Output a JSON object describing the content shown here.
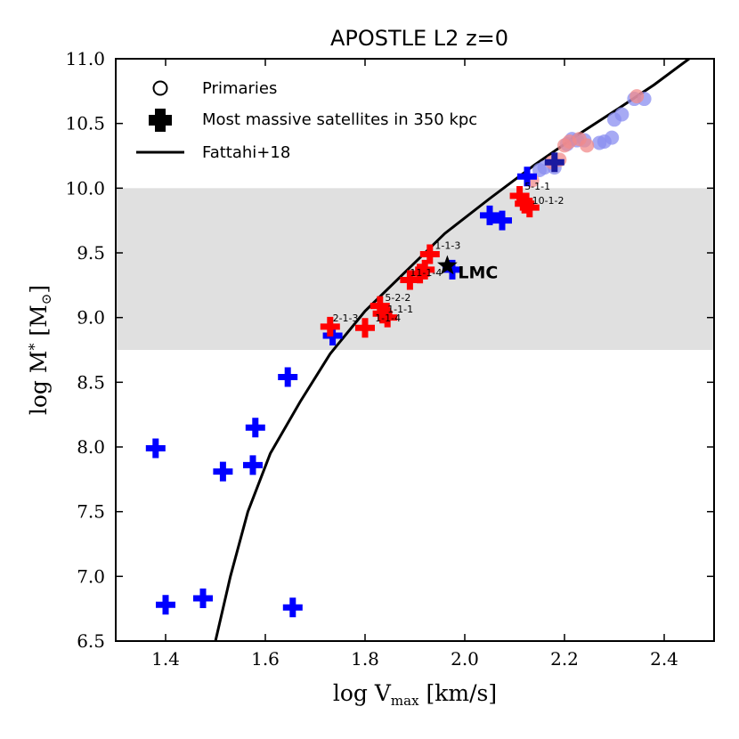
{
  "chart_data": {
    "type": "scatter",
    "title": "APOSTLE L2 z=0",
    "xlabel_main": "log V",
    "xlabel_sub": "max",
    "xlabel_unit": " [km/s]",
    "ylabel_main": "log M",
    "ylabel_sub": "*",
    "ylabel_unit": " [M",
    "ylabel_sun": "⊙",
    "ylabel_close": "]",
    "xlim": [
      1.3,
      2.5
    ],
    "ylim": [
      6.5,
      11.0
    ],
    "xticks": [
      "1.4",
      "1.6",
      "1.8",
      "2.0",
      "2.2",
      "2.4"
    ],
    "yticks": [
      "6.5",
      "7.0",
      "7.5",
      "8.0",
      "8.5",
      "9.0",
      "9.5",
      "10.0",
      "10.5",
      "11.0"
    ],
    "shaded_band": [
      8.75,
      10.0
    ],
    "legend": [
      {
        "marker": "circle",
        "label": "Primaries"
      },
      {
        "marker": "plus",
        "label": "Most massive satellites in 350 kpc"
      },
      {
        "marker": "line",
        "label": "Fattahi+18"
      }
    ],
    "fattahi_curve": [
      [
        1.5,
        6.5
      ],
      [
        1.53,
        7.0
      ],
      [
        1.565,
        7.5
      ],
      [
        1.61,
        7.95
      ],
      [
        1.67,
        8.35
      ],
      [
        1.73,
        8.72
      ],
      [
        1.8,
        9.05
      ],
      [
        1.88,
        9.35
      ],
      [
        1.96,
        9.65
      ],
      [
        2.05,
        9.92
      ],
      [
        2.14,
        10.18
      ],
      [
        2.23,
        10.42
      ],
      [
        2.31,
        10.62
      ],
      [
        2.38,
        10.8
      ],
      [
        2.45,
        11.0
      ]
    ],
    "primaries": {
      "red": [
        [
          2.135,
          10.06
        ],
        [
          2.175,
          10.2
        ],
        [
          2.19,
          10.22
        ],
        [
          2.2,
          10.33
        ],
        [
          2.21,
          10.36
        ],
        [
          2.23,
          10.38
        ],
        [
          2.245,
          10.33
        ],
        [
          2.345,
          10.71
        ]
      ],
      "blue": [
        [
          2.15,
          10.14
        ],
        [
          2.16,
          10.16
        ],
        [
          2.18,
          10.16
        ],
        [
          2.205,
          10.34
        ],
        [
          2.215,
          10.38
        ],
        [
          2.225,
          10.37
        ],
        [
          2.24,
          10.37
        ],
        [
          2.27,
          10.35
        ],
        [
          2.28,
          10.36
        ],
        [
          2.295,
          10.39
        ],
        [
          2.3,
          10.53
        ],
        [
          2.315,
          10.57
        ],
        [
          2.34,
          10.69
        ],
        [
          2.36,
          10.69
        ]
      ]
    },
    "satellites": {
      "blue": [
        [
          1.38,
          7.99
        ],
        [
          1.4,
          6.78
        ],
        [
          1.475,
          6.83
        ],
        [
          1.515,
          7.81
        ],
        [
          1.575,
          7.86
        ],
        [
          1.58,
          8.15
        ],
        [
          1.645,
          8.54
        ],
        [
          1.655,
          6.76
        ],
        [
          1.735,
          8.86
        ],
        [
          1.975,
          9.37
        ],
        [
          2.05,
          9.79
        ],
        [
          2.075,
          9.75
        ],
        [
          2.125,
          10.09
        ]
      ],
      "red": [
        [
          1.73,
          8.93
        ],
        [
          1.8,
          8.92
        ],
        [
          1.83,
          9.09
        ],
        [
          1.835,
          9.03
        ],
        [
          1.845,
          9.0
        ],
        [
          1.89,
          9.29
        ],
        [
          1.91,
          9.34
        ],
        [
          1.92,
          9.37
        ],
        [
          1.93,
          9.49
        ],
        [
          2.11,
          9.94
        ],
        [
          2.12,
          9.88
        ],
        [
          2.13,
          9.85
        ]
      ],
      "navy": [
        [
          2.18,
          10.2
        ]
      ]
    },
    "lmc": {
      "x": 1.965,
      "y": 9.4,
      "label": "LMC"
    },
    "point_labels": [
      {
        "text": "1-1-3",
        "x": 1.94,
        "y": 9.53
      },
      {
        "text": "11-1-4",
        "x": 1.89,
        "y": 9.32
      },
      {
        "text": "5-2-2",
        "x": 1.84,
        "y": 9.13
      },
      {
        "text": "1-1-1",
        "x": 1.845,
        "y": 9.04
      },
      {
        "text": "1-1-4",
        "x": 1.82,
        "y": 8.97
      },
      {
        "text": "2-1-3",
        "x": 1.735,
        "y": 8.97
      },
      {
        "text": "5-1-1",
        "x": 2.12,
        "y": 9.99
      },
      {
        "text": "10-1-2",
        "x": 2.135,
        "y": 9.88
      }
    ]
  },
  "colors": {
    "red_primary": "#f28b8b",
    "blue_primary": "#8a8ef0",
    "red_plus": "#ff0000",
    "blue_plus": "#0000ff",
    "navy_plus": "#1a1aa0",
    "band": "#e0e0e0",
    "curve": "#000000"
  }
}
